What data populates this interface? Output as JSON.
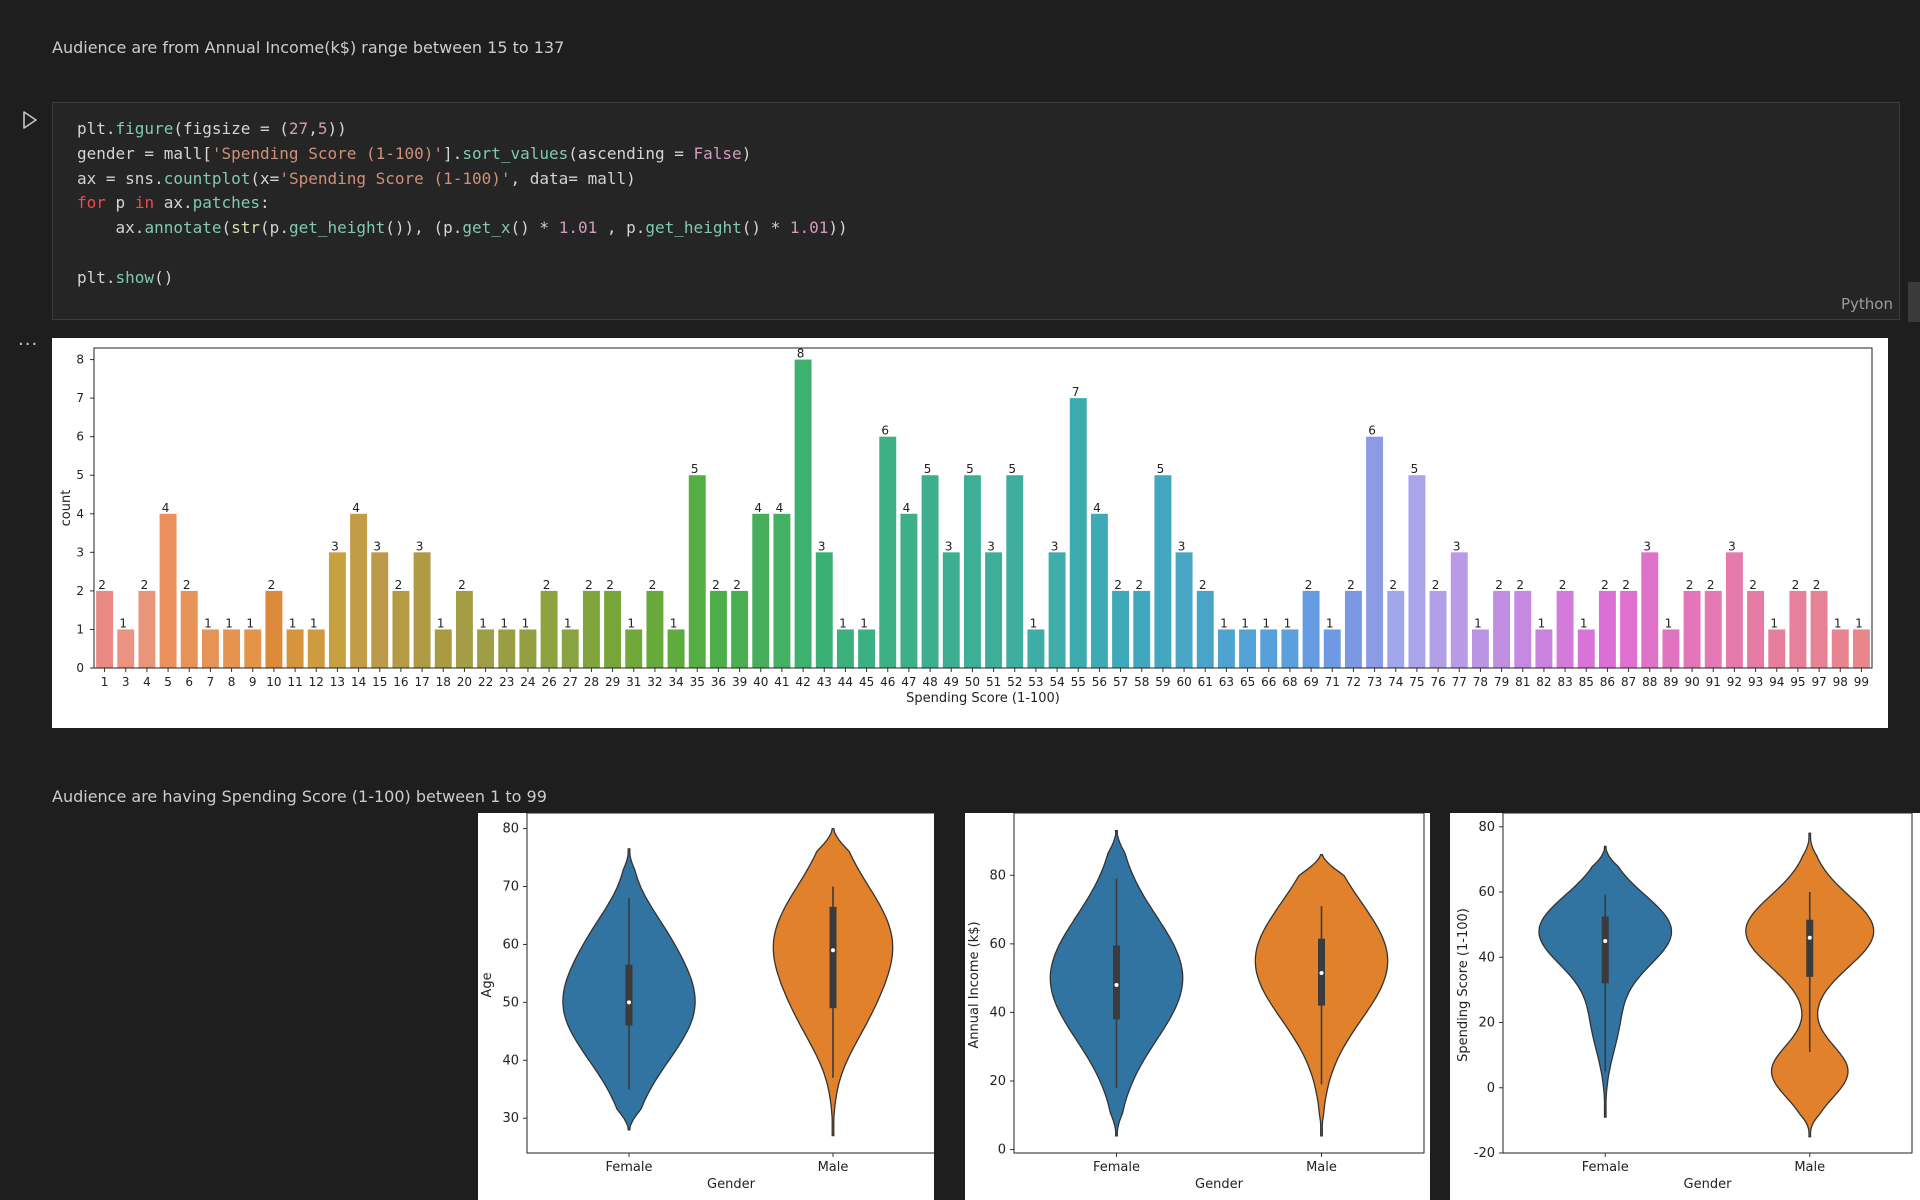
{
  "markdown": {
    "income_note": "Audience are from Annual Income(k$) range between 15 to 137",
    "spending_note": "Audience are having Spending Score (1-100) between 1 to 99"
  },
  "code_cell": {
    "language": "Python",
    "lines": [
      "plt.figure(figsize = (27,5))",
      "gender = mall['Spending Score (1-100)'].sort_values(ascending = False)",
      "ax = sns.countplot(x='Spending Score (1-100)', data= mall)",
      "for p in ax.patches:",
      "    ax.annotate(str(p.get_height()), (p.get_x() * 1.01 , p.get_height() * 1.01))",
      "",
      "plt.show()"
    ]
  },
  "output": {
    "more_icon": "ellipsis-icon"
  },
  "icons": {
    "run": "play-icon"
  },
  "chart_data": [
    {
      "type": "bar",
      "xlabel": "Spending Score (1-100)",
      "ylabel": "count",
      "ylim": [
        0,
        8.3
      ],
      "yticks": [
        0,
        1,
        2,
        3,
        4,
        5,
        6,
        7,
        8
      ],
      "categories": [
        "1",
        "3",
        "4",
        "5",
        "6",
        "7",
        "8",
        "9",
        "10",
        "11",
        "12",
        "13",
        "14",
        "15",
        "16",
        "17",
        "18",
        "20",
        "22",
        "23",
        "24",
        "26",
        "27",
        "28",
        "29",
        "31",
        "32",
        "34",
        "35",
        "36",
        "39",
        "40",
        "41",
        "42",
        "43",
        "44",
        "45",
        "46",
        "47",
        "48",
        "49",
        "50",
        "51",
        "52",
        "53",
        "54",
        "55",
        "56",
        "57",
        "58",
        "59",
        "60",
        "61",
        "63",
        "65",
        "66",
        "68",
        "69",
        "71",
        "72",
        "73",
        "74",
        "75",
        "76",
        "77",
        "78",
        "79",
        "81",
        "82",
        "83",
        "85",
        "86",
        "87",
        "88",
        "89",
        "90",
        "91",
        "92",
        "93",
        "94",
        "95",
        "97",
        "98",
        "99"
      ],
      "values": [
        2,
        1,
        2,
        4,
        2,
        1,
        1,
        1,
        2,
        1,
        1,
        3,
        4,
        3,
        2,
        3,
        1,
        2,
        1,
        1,
        1,
        2,
        1,
        2,
        2,
        1,
        2,
        1,
        5,
        2,
        2,
        4,
        4,
        8,
        3,
        1,
        1,
        6,
        4,
        5,
        3,
        5,
        3,
        5,
        1,
        3,
        7,
        4,
        2,
        2,
        5,
        3,
        2,
        1,
        1,
        1,
        1,
        2,
        1,
        2,
        6,
        2,
        5,
        2,
        3,
        1,
        2,
        2,
        1,
        2,
        1,
        2,
        2,
        3,
        1,
        2,
        2,
        3,
        2,
        1,
        2,
        2,
        1,
        1
      ],
      "colors": [
        "#e98a85",
        "#ec9282",
        "#e9957a",
        "#eb8f5d",
        "#e89258",
        "#e69356",
        "#e6934f",
        "#e49449",
        "#dd8b3a",
        "#d6943d",
        "#cf9b40",
        "#c7a040",
        "#c29c47",
        "#bd9a49",
        "#b69b47",
        "#b09b45",
        "#aa9a44",
        "#a49d45",
        "#9e9e44",
        "#989e41",
        "#939f41",
        "#8ea23f",
        "#88a33f",
        "#81a43c",
        "#79a63b",
        "#70a83a",
        "#67a93a",
        "#5fab3d",
        "#55ae43",
        "#4eae49",
        "#4aaf50",
        "#47af5b",
        "#43b064",
        "#3db16f",
        "#3aaf76",
        "#3bb07c",
        "#3bb082",
        "#3eb085",
        "#3db08a",
        "#3eaf8e",
        "#3dae92",
        "#3daf96",
        "#3ead9a",
        "#3faea0",
        "#3eada5",
        "#3fadaa",
        "#3babb0",
        "#3eaab5",
        "#3da9b9",
        "#40a8bd",
        "#44a7c0",
        "#48a6c4",
        "#4aa4c9",
        "#4ea3cf",
        "#53a2d5",
        "#58a0d9",
        "#5c9fdd",
        "#659ce1",
        "#6e99e3",
        "#7b98e4",
        "#8b9be4",
        "#a2a6ea",
        "#aaa4ea",
        "#b19fe8",
        "#b89ae6",
        "#bb95e4",
        "#c18ee2",
        "#c688e0",
        "#cb82de",
        "#d27bdb",
        "#d873d8",
        "#dc6fd6",
        "#df70d0",
        "#df72c8",
        "#e174c0",
        "#e276b9",
        "#e478b3",
        "#e57aab",
        "#e67ca5",
        "#e67e9f",
        "#e7809a",
        "#e78294",
        "#e8848f",
        "#e8868b"
      ]
    },
    {
      "type": "violin",
      "xlabel": "Gender",
      "ylabel": "Age",
      "categories": [
        "Female",
        "Male"
      ],
      "yticks": [
        30,
        40,
        50,
        60,
        70,
        80
      ],
      "ylim": [
        24,
        82
      ],
      "series": [
        {
          "category": "Female",
          "color": "#3274a1",
          "min": 28,
          "max": 76.5,
          "median": 50,
          "q1": 46,
          "q3": 56.5,
          "whisker_low": 35,
          "whisker_high": 68
        },
        {
          "category": "Male",
          "color": "#e1812c",
          "min": 27,
          "max": 80,
          "median": 59,
          "q1": 49,
          "q3": 66.5,
          "whisker_low": 37,
          "whisker_high": 70
        }
      ]
    },
    {
      "type": "violin",
      "xlabel": "Gender",
      "ylabel": "Annual Income (k$)",
      "categories": [
        "Female",
        "Male"
      ],
      "yticks": [
        0,
        20,
        40,
        60,
        80
      ],
      "ylim": [
        -1,
        97
      ],
      "series": [
        {
          "category": "Female",
          "color": "#3274a1",
          "min": 4,
          "max": 93,
          "median": 48,
          "q1": 38,
          "q3": 59.5,
          "whisker_low": 18,
          "whisker_high": 79
        },
        {
          "category": "Male",
          "color": "#e1812c",
          "min": 4,
          "max": 86,
          "median": 51.5,
          "q1": 42,
          "q3": 61.5,
          "whisker_low": 19,
          "whisker_high": 71
        }
      ]
    },
    {
      "type": "violin",
      "xlabel": "Gender",
      "ylabel": "Spending Score (1-100)",
      "categories": [
        "Female",
        "Male"
      ],
      "yticks": [
        -20,
        0,
        20,
        40,
        60,
        80
      ],
      "ylim": [
        -20,
        83
      ],
      "series": [
        {
          "category": "Female",
          "color": "#3274a1",
          "min": -9,
          "max": 74,
          "median": 45,
          "q1": 32,
          "q3": 52.5,
          "whisker_low": 5,
          "whisker_high": 59
        },
        {
          "category": "Male",
          "color": "#e1812c",
          "min": -15,
          "max": 78,
          "median": 46,
          "q1": 34,
          "q3": 51.5,
          "whisker_low": 11,
          "whisker_high": 60
        }
      ]
    }
  ]
}
